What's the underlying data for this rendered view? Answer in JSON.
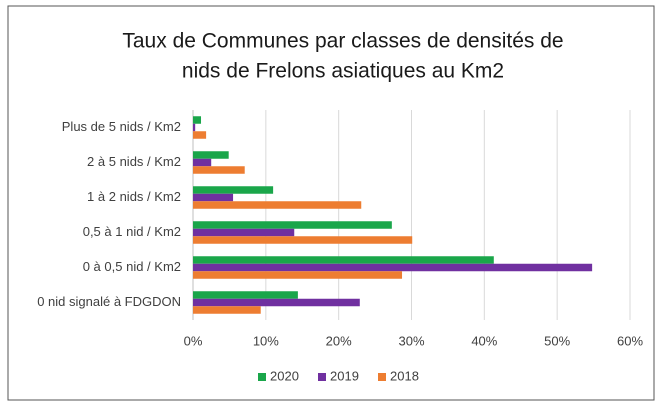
{
  "chart_data": {
    "type": "hbar",
    "title": [
      "Taux de Communes par classes de densités de",
      "nids de Frelons asiatiques au Km2"
    ],
    "categories": [
      "Plus de 5 nids / Km2",
      "2 à 5 nids / Km2",
      "1 à 2 nids / Km2",
      "0,5 à 1 nid / Km2",
      "0 à 0,5 nid / Km2",
      "0 nid signalé à FDGDON"
    ],
    "series": [
      {
        "name": "2020",
        "color": "#1aa64a",
        "values": [
          1.1,
          4.9,
          11.0,
          27.3,
          41.3,
          14.4
        ]
      },
      {
        "name": "2019",
        "color": "#7030a0",
        "values": [
          0.3,
          2.5,
          5.5,
          13.9,
          54.8,
          22.9
        ]
      },
      {
        "name": "2018",
        "color": "#ed7d31",
        "values": [
          1.8,
          7.1,
          23.1,
          30.1,
          28.7,
          9.3
        ]
      }
    ],
    "xlim": [
      0,
      60
    ],
    "xticks": [
      {
        "value": 0,
        "label": "0%"
      },
      {
        "value": 10,
        "label": "10%"
      },
      {
        "value": 20,
        "label": "20%"
      },
      {
        "value": 30,
        "label": "30%"
      },
      {
        "value": 40,
        "label": "40%"
      },
      {
        "value": 50,
        "label": "50%"
      },
      {
        "value": 60,
        "label": "60%"
      }
    ],
    "grid": true,
    "legend": "bottom"
  }
}
